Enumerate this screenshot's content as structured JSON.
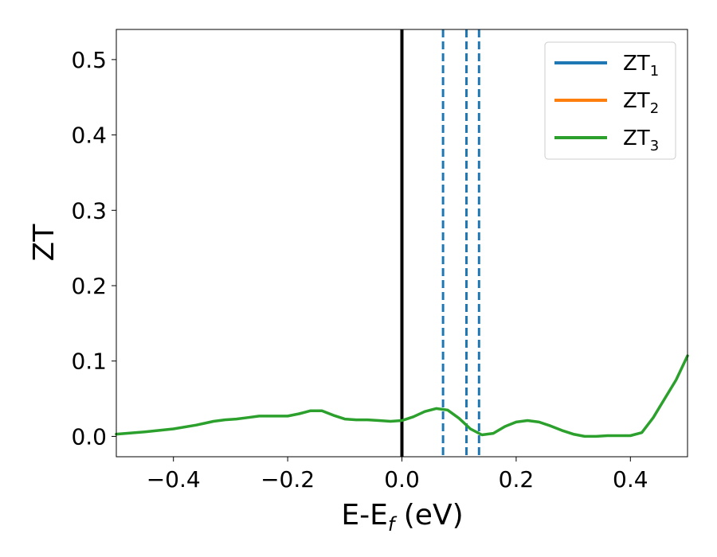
{
  "chart_data": {
    "type": "line",
    "xlabel": {
      "main": "E-E",
      "sub": "f",
      "rest": " (eV)"
    },
    "ylabel": "ZT",
    "xlim": [
      -0.5,
      0.5
    ],
    "ylim": [
      -0.027,
      0.54
    ],
    "grid": false,
    "legend_position": "top-right",
    "x_ticks": [
      {
        "value": -0.4,
        "label": "−0.4"
      },
      {
        "value": -0.2,
        "label": "−0.2"
      },
      {
        "value": 0.0,
        "label": "0.0"
      },
      {
        "value": 0.2,
        "label": "0.2"
      },
      {
        "value": 0.4,
        "label": "0.4"
      }
    ],
    "y_ticks": [
      {
        "value": 0.0,
        "label": "0.0"
      },
      {
        "value": 0.1,
        "label": "0.1"
      },
      {
        "value": 0.2,
        "label": "0.2"
      },
      {
        "value": 0.3,
        "label": "0.3"
      },
      {
        "value": 0.4,
        "label": "0.4"
      },
      {
        "value": 0.5,
        "label": "0.5"
      }
    ],
    "series": [
      {
        "name": "ZT",
        "name_sub": "1",
        "color": "#1f77b4",
        "drawn": false
      },
      {
        "name": "ZT",
        "name_sub": "2",
        "color": "#ff7f0e",
        "drawn": false
      },
      {
        "name": "ZT",
        "name_sub": "3",
        "color": "#2ca02c",
        "drawn": true,
        "x": [
          -0.5,
          -0.45,
          -0.4,
          -0.36,
          -0.33,
          -0.31,
          -0.29,
          -0.27,
          -0.25,
          -0.22,
          -0.2,
          -0.18,
          -0.16,
          -0.14,
          -0.12,
          -0.1,
          -0.08,
          -0.06,
          -0.04,
          -0.02,
          0.0,
          0.02,
          0.04,
          0.06,
          0.08,
          0.1,
          0.12,
          0.14,
          0.16,
          0.18,
          0.2,
          0.22,
          0.24,
          0.26,
          0.28,
          0.3,
          0.32,
          0.34,
          0.36,
          0.38,
          0.4,
          0.42,
          0.44,
          0.46,
          0.48,
          0.5
        ],
        "y": [
          0.003,
          0.006,
          0.01,
          0.015,
          0.02,
          0.022,
          0.023,
          0.025,
          0.027,
          0.027,
          0.027,
          0.03,
          0.034,
          0.034,
          0.028,
          0.023,
          0.022,
          0.022,
          0.021,
          0.02,
          0.021,
          0.026,
          0.033,
          0.037,
          0.035,
          0.024,
          0.01,
          0.002,
          0.004,
          0.013,
          0.019,
          0.021,
          0.019,
          0.014,
          0.008,
          0.003,
          0.0,
          0.0,
          0.001,
          0.001,
          0.001,
          0.005,
          0.025,
          0.05,
          0.075,
          0.107
        ]
      }
    ],
    "vertical_lines": [
      {
        "x": 0.0,
        "style": "solid",
        "color": "#000000"
      },
      {
        "x": 0.072,
        "style": "dashed",
        "color": "#1f77b4"
      },
      {
        "x": 0.113,
        "style": "dashed",
        "color": "#1f77b4"
      },
      {
        "x": 0.135,
        "style": "dashed",
        "color": "#1f77b4"
      }
    ]
  }
}
